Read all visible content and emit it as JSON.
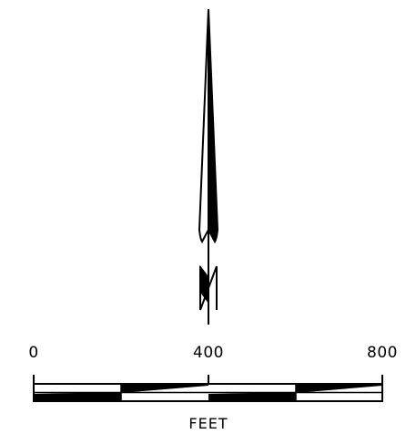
{
  "north_arrow": {
    "symbol": "north-arrow-with-n"
  },
  "scale_bar": {
    "tick_labels": [
      "0",
      "400",
      "800"
    ],
    "unit_label": "FEET",
    "max_value": 800,
    "segment_count": 4
  },
  "colors": {
    "ink": "#000000",
    "paper": "#ffffff"
  }
}
